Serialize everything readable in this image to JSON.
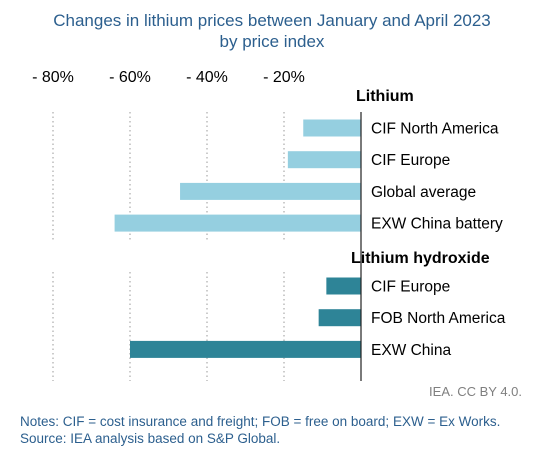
{
  "title_line1": "Changes in lithium prices between January and April 2023",
  "title_line2": "by price index",
  "credit": "IEA. CC BY 4.0.",
  "notes": "Notes: CIF = cost insurance and freight; FOB = free on board; EXW = Ex Works.",
  "source": "Source: IEA analysis based on S&P Global.",
  "chart_data": {
    "type": "bar",
    "orientation": "horizontal",
    "xlim": [
      -80,
      0
    ],
    "x_ticks": [
      -80,
      -60,
      -40,
      -20
    ],
    "x_tick_labels": [
      "- 80%",
      "- 60%",
      "- 40%",
      "- 20%"
    ],
    "gridlines": "vertical dotted",
    "groups": [
      {
        "name": "Lithium",
        "color": "#95cfe0",
        "categories": [
          "CIF North America",
          "CIF Europe",
          "Global average",
          "EXW China battery"
        ],
        "values": [
          -15,
          -19,
          -47,
          -64
        ]
      },
      {
        "name": "Lithium hydroxide",
        "color": "#2e8497",
        "categories": [
          "CIF Europe",
          "FOB North America",
          "EXW China"
        ],
        "values": [
          -9,
          -11,
          -60
        ]
      }
    ]
  }
}
